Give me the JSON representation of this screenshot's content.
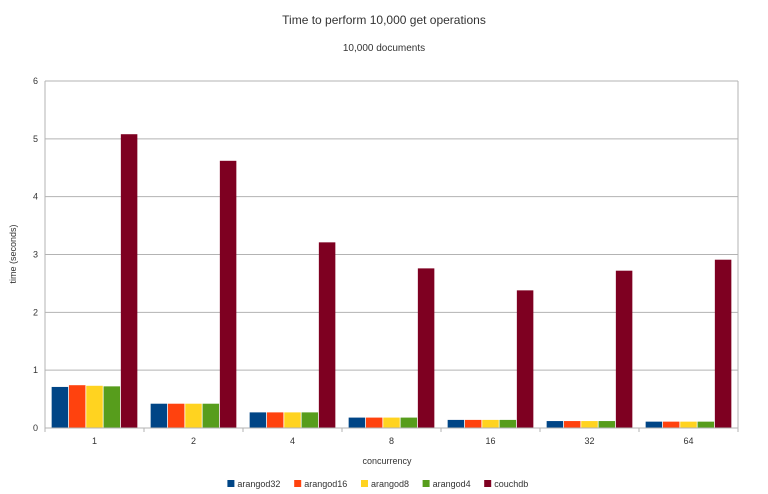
{
  "chart_data": {
    "type": "bar",
    "title": "Time to perform 10,000 get operations",
    "subtitle": "10,000 documents",
    "xlabel": "concurrency",
    "ylabel": "time (seconds)",
    "ylim": [
      0,
      6
    ],
    "yticks": [
      "0",
      "1",
      "2",
      "3",
      "4",
      "5",
      "6"
    ],
    "grid": true,
    "legend_position": "bottom",
    "categories": [
      "1",
      "2",
      "4",
      "8",
      "16",
      "32",
      "64"
    ],
    "series": [
      {
        "name": "arangod32",
        "color": "#004586",
        "values": [
          0.71,
          0.42,
          0.27,
          0.18,
          0.14,
          0.12,
          0.11
        ]
      },
      {
        "name": "arangod16",
        "color": "#ff420e",
        "values": [
          0.74,
          0.42,
          0.27,
          0.18,
          0.14,
          0.12,
          0.11
        ]
      },
      {
        "name": "arangod8",
        "color": "#ffd320",
        "values": [
          0.73,
          0.42,
          0.27,
          0.18,
          0.14,
          0.12,
          0.11
        ]
      },
      {
        "name": "arangod4",
        "color": "#579d1c",
        "values": [
          0.72,
          0.42,
          0.27,
          0.18,
          0.14,
          0.12,
          0.11
        ]
      },
      {
        "name": "couchdb",
        "color": "#7e0021",
        "values": [
          5.08,
          4.62,
          3.21,
          2.76,
          2.38,
          2.72,
          2.91
        ]
      }
    ]
  }
}
